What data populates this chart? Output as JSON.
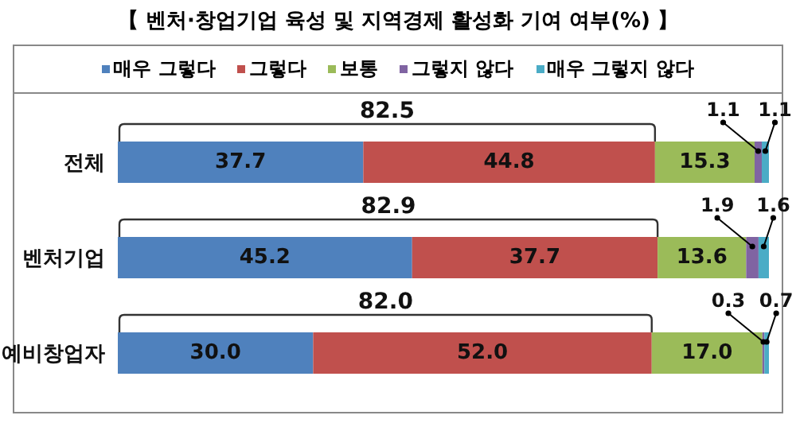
{
  "chart_data": {
    "type": "bar",
    "orientation": "horizontal",
    "stacked": true,
    "title": "【 벤처·창업기업 육성 및 지역경제 활성화 기여 여부(%) 】",
    "categories": [
      "전체",
      "벤처기업",
      "예비창업자"
    ],
    "series": [
      {
        "name": "매우 그렇다",
        "color": "#4f81bd",
        "values": [
          37.7,
          45.2,
          30.0
        ],
        "value_labels": [
          "37.7",
          "45.2",
          "30.0"
        ]
      },
      {
        "name": "그렇다",
        "color": "#c0504d",
        "values": [
          44.8,
          37.7,
          52.0
        ],
        "value_labels": [
          "44.8",
          "37.7",
          "52.0"
        ]
      },
      {
        "name": "보통",
        "color": "#9bbb59",
        "values": [
          15.3,
          13.6,
          17.0
        ],
        "value_labels": [
          "15.3",
          "13.6",
          "17.0"
        ]
      },
      {
        "name": "그렇지 않다",
        "color": "#8064a2",
        "values": [
          1.1,
          1.9,
          0.3
        ],
        "value_labels": [
          "1.1",
          "1.9",
          "0.3"
        ]
      },
      {
        "name": "매우 그렇지 않다",
        "color": "#4bacc6",
        "values": [
          1.1,
          1.6,
          0.7
        ],
        "value_labels": [
          "1.1",
          "1.6",
          "0.7"
        ]
      }
    ],
    "annotations": [
      "82.5",
      "82.9",
      "82.0"
    ],
    "xlim": [
      0,
      100
    ],
    "tick_labels": "y",
    "legend": "top",
    "grid": false
  }
}
